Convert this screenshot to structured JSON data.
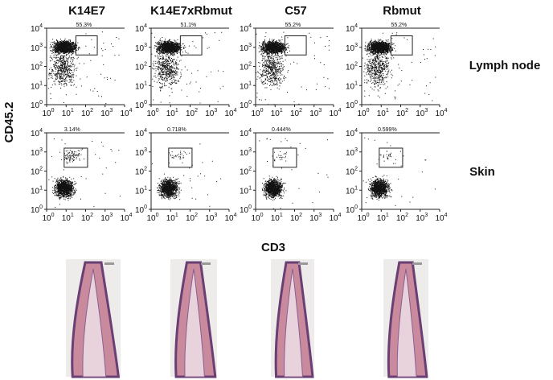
{
  "columns": [
    "K14E7",
    "K14E7xRbmut",
    "C57",
    "Rbmut"
  ],
  "rows": [
    "Lymph node",
    "Skin"
  ],
  "y_axis_label": "CD45.2",
  "x_axis_label": "CD3",
  "tick_base": "10",
  "tick_exponents": [
    "0",
    "1",
    "2",
    "3",
    "4"
  ],
  "gates": [
    [
      "55.3%",
      "51.1%",
      "55.2%",
      "55.2%"
    ],
    [
      "3.14%",
      "0.718%",
      "0.444%",
      "0.599%"
    ]
  ]
}
